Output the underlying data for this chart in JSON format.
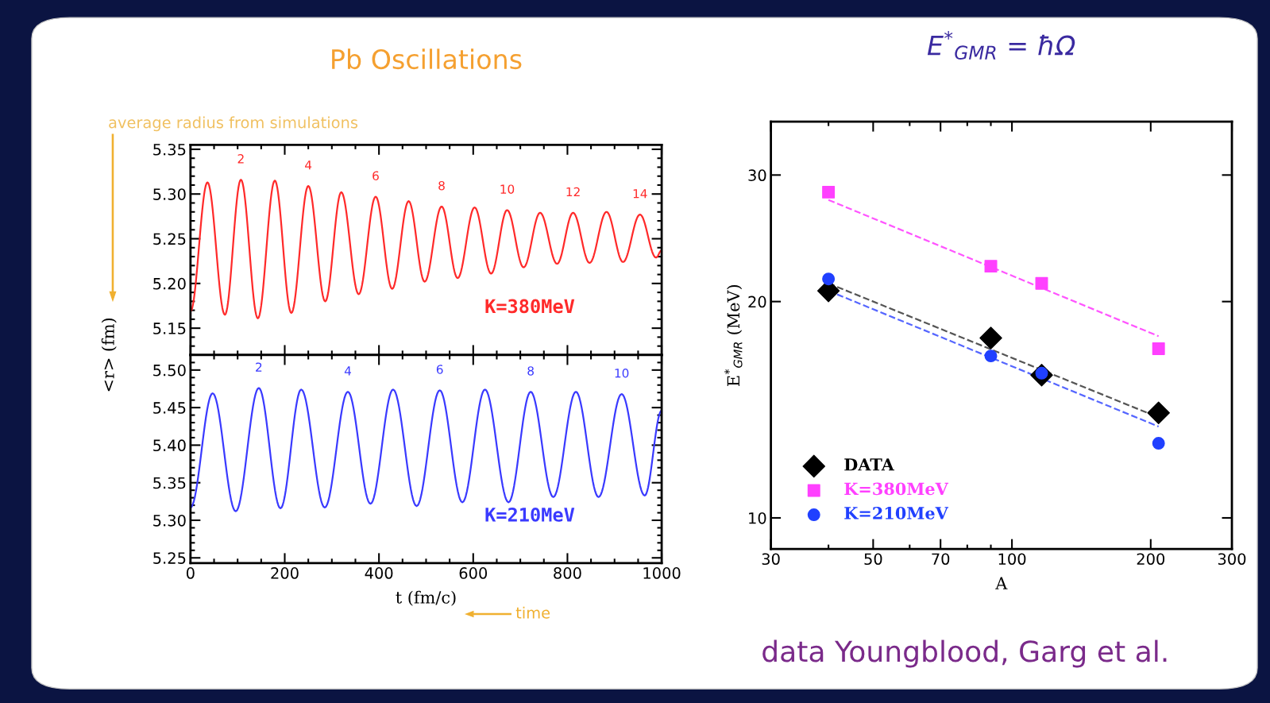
{
  "chart_data": [
    {
      "type": "line",
      "title": "Pb Oscillations",
      "xlim": [
        0,
        1000
      ],
      "ylim": [
        5.12,
        5.355
      ],
      "xticks": [
        0,
        200,
        400,
        600,
        800,
        1000
      ],
      "yticks": [
        {
          "value": 5.15,
          "label": "5.15"
        },
        {
          "value": 5.2,
          "label": "5.20"
        },
        {
          "value": 5.25,
          "label": "5.25"
        },
        {
          "value": 5.3,
          "label": "5.30"
        },
        {
          "value": 5.35,
          "label": "5.35"
        }
      ],
      "tick_labels": "y",
      "grid": false,
      "legend": false,
      "series": [
        {
          "name": "K=380MeV",
          "color": "#ff2a2a",
          "x": [
            0,
            36,
            73,
            107,
            143,
            179,
            214,
            250,
            286,
            320,
            357,
            393,
            428,
            463,
            497,
            533,
            567,
            603,
            638,
            672,
            707,
            742,
            778,
            812,
            847,
            883,
            918,
            954,
            988,
            1000
          ],
          "values": [
            5.169,
            5.313,
            5.165,
            5.316,
            5.161,
            5.315,
            5.167,
            5.309,
            5.18,
            5.302,
            5.188,
            5.297,
            5.194,
            5.292,
            5.202,
            5.286,
            5.206,
            5.285,
            5.211,
            5.282,
            5.218,
            5.279,
            5.222,
            5.279,
            5.223,
            5.28,
            5.224,
            5.277,
            5.229,
            5.237
          ]
        }
      ],
      "annotations": [
        "average radius from simulations",
        {
          "text": "2",
          "x": 107,
          "y": 5.316
        },
        {
          "text": "4",
          "x": 250,
          "y": 5.309
        },
        {
          "text": "6",
          "x": 393,
          "y": 5.297
        },
        {
          "text": "8",
          "x": 533,
          "y": 5.286
        },
        {
          "text": "10",
          "x": 672,
          "y": 5.282
        },
        {
          "text": "12",
          "x": 812,
          "y": 5.279
        },
        {
          "text": "14",
          "x": 954,
          "y": 5.277
        }
      ]
    },
    {
      "type": "line",
      "xlabel": "t (fm/c)",
      "ylabel": "<r> (fm)",
      "xlim": [
        0,
        1000
      ],
      "ylim": [
        5.243,
        5.52
      ],
      "xticks": [
        0,
        200,
        400,
        600,
        800,
        1000
      ],
      "yticks": [
        {
          "value": 5.25,
          "label": "5.25"
        },
        {
          "value": 5.3,
          "label": "5.30"
        },
        {
          "value": 5.35,
          "label": "5.35"
        },
        {
          "value": 5.4,
          "label": "5.40"
        },
        {
          "value": 5.45,
          "label": "5.45"
        },
        {
          "value": 5.5,
          "label": "5.50"
        }
      ],
      "grid": false,
      "legend": false,
      "series": [
        {
          "name": "K=210MeV",
          "color": "#3a3aff",
          "x": [
            0,
            47,
            96,
            145,
            191,
            235,
            285,
            334,
            382,
            430,
            480,
            529,
            577,
            625,
            675,
            722,
            770,
            818,
            866,
            915,
            964,
            1000
          ],
          "values": [
            5.317,
            5.469,
            5.312,
            5.476,
            5.316,
            5.474,
            5.317,
            5.471,
            5.322,
            5.474,
            5.319,
            5.473,
            5.324,
            5.474,
            5.324,
            5.471,
            5.331,
            5.471,
            5.331,
            5.468,
            5.333,
            5.446
          ]
        }
      ],
      "annotations": [
        "time",
        {
          "text": "2",
          "x": 145,
          "y": 5.476
        },
        {
          "text": "4",
          "x": 334,
          "y": 5.471
        },
        {
          "text": "6",
          "x": 529,
          "y": 5.473
        },
        {
          "text": "8",
          "x": 722,
          "y": 5.471
        },
        {
          "text": "10",
          "x": 915,
          "y": 5.468
        }
      ]
    },
    {
      "type": "scatter",
      "title": "E$^{*}$$_{GMR}$ = ħΩ",
      "xlabel": "A",
      "ylabel": "E$^{*}$$_{GMR}$ (MeV)",
      "log": "xy",
      "xlim": [
        30,
        300
      ],
      "ylim": [
        9.05,
        35.6
      ],
      "xticks": [
        30,
        50,
        70,
        100,
        200,
        300
      ],
      "yticks": [
        10,
        20,
        30
      ],
      "grid": false,
      "legend": "bottom left",
      "series": [
        {
          "name": "DATA",
          "color": "#000000",
          "marker": "diamond",
          "x": [
            40,
            90,
            116,
            208
          ],
          "values": [
            20.7,
            17.8,
            15.8,
            14.0
          ]
        },
        {
          "name": "K=380MeV",
          "color": "#ff40ff",
          "marker": "square",
          "x": [
            40,
            90,
            116,
            208
          ],
          "values": [
            28.4,
            22.4,
            21.2,
            17.2
          ]
        },
        {
          "name": "K=210MeV",
          "color": "#2040ff",
          "marker": "circle",
          "x": [
            40,
            90,
            116,
            208
          ],
          "values": [
            21.5,
            16.8,
            15.9,
            12.7
          ]
        },
        {
          "type": "line",
          "line_style": "dashed",
          "color": "#ff55ff",
          "x": [
            40,
            208
          ],
          "values": [
            27.7,
            17.9
          ]
        },
        {
          "type": "line",
          "line_style": "dashed",
          "color": "#555555",
          "x": [
            40,
            208
          ],
          "values": [
            21.2,
            13.8
          ]
        },
        {
          "type": "line",
          "line_style": "dashed",
          "color": "#5566ff",
          "x": [
            40,
            208
          ],
          "values": [
            20.7,
            13.4
          ]
        }
      ],
      "annotations": [
        "data Youngblood, Garg et al."
      ]
    }
  ]
}
